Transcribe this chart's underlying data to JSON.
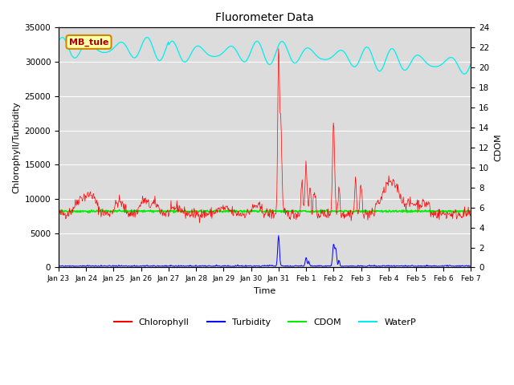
{
  "title": "Fluorometer Data",
  "xlabel": "Time",
  "ylabel_left": "Chlorophyll/Turbidity",
  "ylabel_right": "CDOM",
  "ylim_left": [
    0,
    35000
  ],
  "ylim_right": [
    0,
    24
  ],
  "station_label": "MB_tule",
  "x_tick_labels": [
    "Jan 23",
    "Jan 24",
    "Jan 25",
    "Jan 26",
    "Jan 27",
    "Jan 28",
    "Jan 29",
    "Jan 30",
    "Jan 31",
    "Feb 1",
    "Feb 2",
    "Feb 3",
    "Feb 4",
    "Feb 5",
    "Feb 6",
    "Feb 7"
  ],
  "colors": {
    "chlorophyll": "#ff0000",
    "turbidity": "#0000ff",
    "cdom": "#00ee00",
    "waterp": "#00eeee",
    "background": "#ffffff",
    "plot_bg": "#dcdcdc",
    "station_box_bg": "#ffffaa",
    "station_box_edge": "#cc8800"
  },
  "legend_labels": [
    "Chlorophyll",
    "Turbidity",
    "CDOM",
    "WaterP"
  ]
}
